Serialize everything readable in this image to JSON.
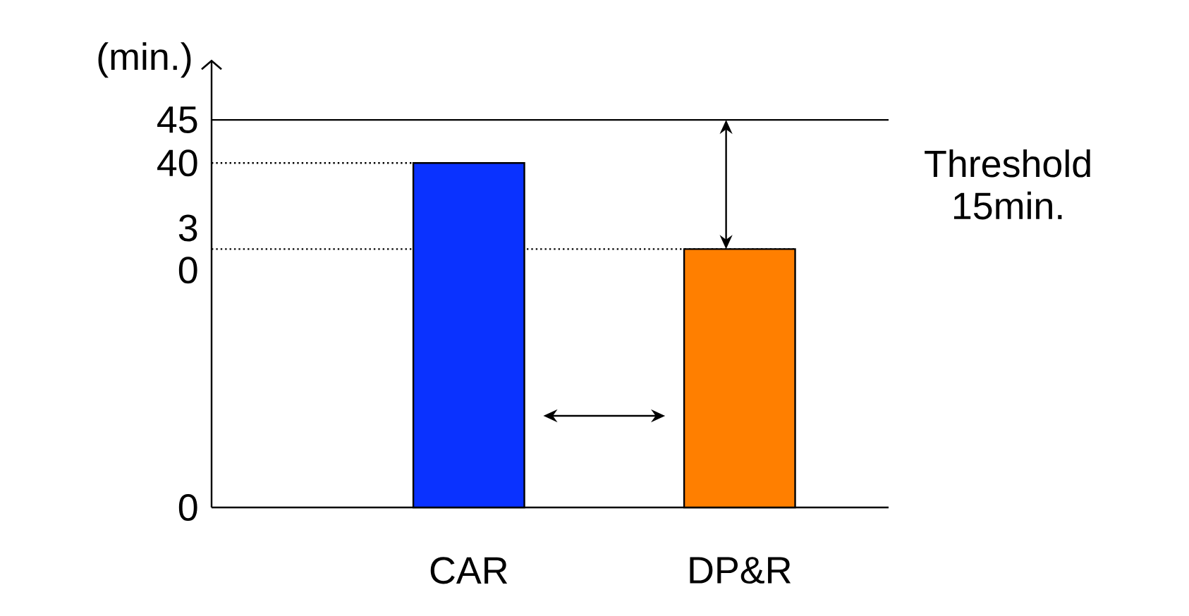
{
  "chart_data": {
    "type": "bar",
    "ylabel": "(min.)",
    "categories": [
      "CAR",
      "DP&R"
    ],
    "values": [
      40,
      30
    ],
    "colors": [
      "#0a32ff",
      "#ff7f00"
    ],
    "ylim": [
      0,
      52
    ],
    "yticks": [
      0,
      {
        "value": 30,
        "label": "3 0"
      },
      40,
      45
    ],
    "ref_lines": [
      {
        "axis": "y",
        "value": 45,
        "line_style": "solid"
      },
      {
        "axis": "y",
        "value": 40,
        "line_style": "dotted"
      },
      {
        "axis": "y",
        "value": 30,
        "line_style": "dotted"
      }
    ],
    "annotations": [
      "Threshold 15min."
    ]
  }
}
